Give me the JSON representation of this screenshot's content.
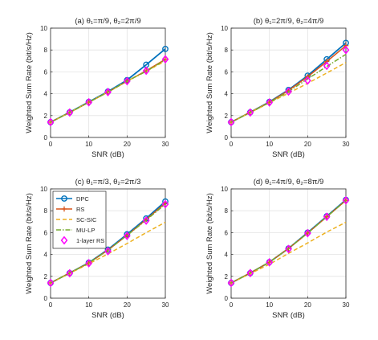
{
  "chart_data": [
    {
      "type": "line",
      "title": "(a) θ₁=π/9, θ₂=2π/9",
      "xlabel": "SNR (dB)",
      "ylabel": "Weighted Sum Rate (bit/s/Hz)",
      "xlim": [
        0,
        30
      ],
      "ylim": [
        0,
        10
      ],
      "xticks": [
        0,
        10,
        20,
        30
      ],
      "yticks": [
        0,
        2,
        4,
        6,
        8,
        10
      ],
      "grid": true,
      "x": [
        0,
        5,
        10,
        15,
        20,
        25,
        30
      ],
      "series": [
        {
          "name": "DPC",
          "values": [
            1.4,
            2.3,
            3.25,
            4.2,
            5.25,
            6.65,
            8.1
          ]
        },
        {
          "name": "RS",
          "values": [
            1.4,
            2.28,
            3.22,
            4.15,
            5.15,
            6.1,
            7.15
          ]
        },
        {
          "name": "SC-SIC",
          "values": [
            1.4,
            2.28,
            3.22,
            4.15,
            5.15,
            6.05,
            7.0
          ]
        },
        {
          "name": "MU-LP",
          "values": [
            1.4,
            2.28,
            3.22,
            4.15,
            5.15,
            6.05,
            7.1
          ]
        },
        {
          "name": "1-layer RS",
          "values": [
            1.4,
            2.28,
            3.22,
            4.15,
            5.15,
            6.1,
            7.15
          ]
        }
      ]
    },
    {
      "type": "line",
      "title": "(b) θ₁=2π/9, θ₂=4π/9",
      "xlabel": "SNR (dB)",
      "ylabel": "Weighted Sum Rate (bit/s/Hz)",
      "xlim": [
        0,
        30
      ],
      "ylim": [
        0,
        10
      ],
      "xticks": [
        0,
        10,
        20,
        30
      ],
      "yticks": [
        0,
        2,
        4,
        6,
        8,
        10
      ],
      "grid": true,
      "x": [
        0,
        5,
        10,
        15,
        20,
        25,
        30
      ],
      "series": [
        {
          "name": "DPC",
          "values": [
            1.4,
            2.3,
            3.25,
            4.35,
            5.65,
            7.15,
            8.65
          ]
        },
        {
          "name": "RS",
          "values": [
            1.4,
            2.3,
            3.22,
            4.3,
            5.55,
            6.95,
            8.4
          ]
        },
        {
          "name": "SC-SIC",
          "values": [
            1.4,
            2.28,
            3.18,
            4.05,
            4.95,
            5.9,
            6.85
          ]
        },
        {
          "name": "MU-LP",
          "values": [
            1.4,
            2.28,
            3.2,
            4.2,
            5.35,
            6.5,
            7.6
          ]
        },
        {
          "name": "1-layer RS",
          "values": [
            1.4,
            2.28,
            3.2,
            4.2,
            5.2,
            6.55,
            8.0
          ]
        }
      ]
    },
    {
      "type": "line",
      "title": "(c) θ₁=π/3, θ₂=2π/3",
      "xlabel": "SNR (dB)",
      "ylabel": "Weighted Sum Rate (bit/s/Hz)",
      "xlim": [
        0,
        30
      ],
      "ylim": [
        0,
        10
      ],
      "xticks": [
        0,
        10,
        20,
        30
      ],
      "yticks": [
        0,
        2,
        4,
        6,
        8,
        10
      ],
      "grid": true,
      "legend": "top-left",
      "x": [
        0,
        5,
        10,
        15,
        20,
        25,
        30
      ],
      "series": [
        {
          "name": "DPC",
          "values": [
            1.4,
            2.3,
            3.25,
            4.45,
            5.85,
            7.3,
            8.85
          ]
        },
        {
          "name": "RS",
          "values": [
            1.4,
            2.3,
            3.22,
            4.4,
            5.75,
            7.2,
            8.7
          ]
        },
        {
          "name": "SC-SIC",
          "values": [
            1.4,
            2.28,
            3.15,
            4.05,
            5.0,
            6.0,
            6.95
          ]
        },
        {
          "name": "MU-LP",
          "values": [
            1.4,
            2.3,
            3.22,
            4.4,
            5.75,
            7.15,
            8.6
          ]
        },
        {
          "name": "1-layer RS",
          "values": [
            1.4,
            2.28,
            3.2,
            4.3,
            5.7,
            7.1,
            8.6
          ]
        }
      ]
    },
    {
      "type": "line",
      "title": "(d) θ₁=4π/9, θ₂=8π/9",
      "xlabel": "SNR (dB)",
      "ylabel": "Weighted Sum Rate (bit/s/Hz)",
      "xlim": [
        0,
        30
      ],
      "ylim": [
        0,
        10
      ],
      "xticks": [
        0,
        10,
        20,
        30
      ],
      "yticks": [
        0,
        2,
        4,
        6,
        8,
        10
      ],
      "grid": true,
      "x": [
        0,
        5,
        10,
        15,
        20,
        25,
        30
      ],
      "series": [
        {
          "name": "DPC",
          "values": [
            1.4,
            2.3,
            3.3,
            4.55,
            6.0,
            7.5,
            9.0
          ]
        },
        {
          "name": "RS",
          "values": [
            1.4,
            2.3,
            3.3,
            4.55,
            5.95,
            7.45,
            8.95
          ]
        },
        {
          "name": "SC-SIC",
          "values": [
            1.4,
            2.25,
            3.1,
            4.1,
            5.05,
            6.05,
            6.95
          ]
        },
        {
          "name": "MU-LP",
          "values": [
            1.4,
            2.3,
            3.3,
            4.55,
            5.95,
            7.45,
            8.95
          ]
        },
        {
          "name": "1-layer RS",
          "values": [
            1.4,
            2.3,
            3.28,
            4.5,
            5.95,
            7.45,
            8.95
          ]
        }
      ]
    }
  ],
  "legend": {
    "entries": [
      {
        "name": "DPC",
        "color": "#0072BD",
        "style": "solid",
        "marker": "circle"
      },
      {
        "name": "RS",
        "color": "#D95319",
        "style": "solid",
        "marker": "plus"
      },
      {
        "name": "SC-SIC",
        "color": "#EDB120",
        "style": "dashed",
        "marker": "none"
      },
      {
        "name": "MU-LP",
        "color": "#77AC30",
        "style": "dashdot",
        "marker": "none"
      },
      {
        "name": "1-layer RS",
        "color": "#FF00FF",
        "style": "none",
        "marker": "diamond"
      }
    ]
  }
}
